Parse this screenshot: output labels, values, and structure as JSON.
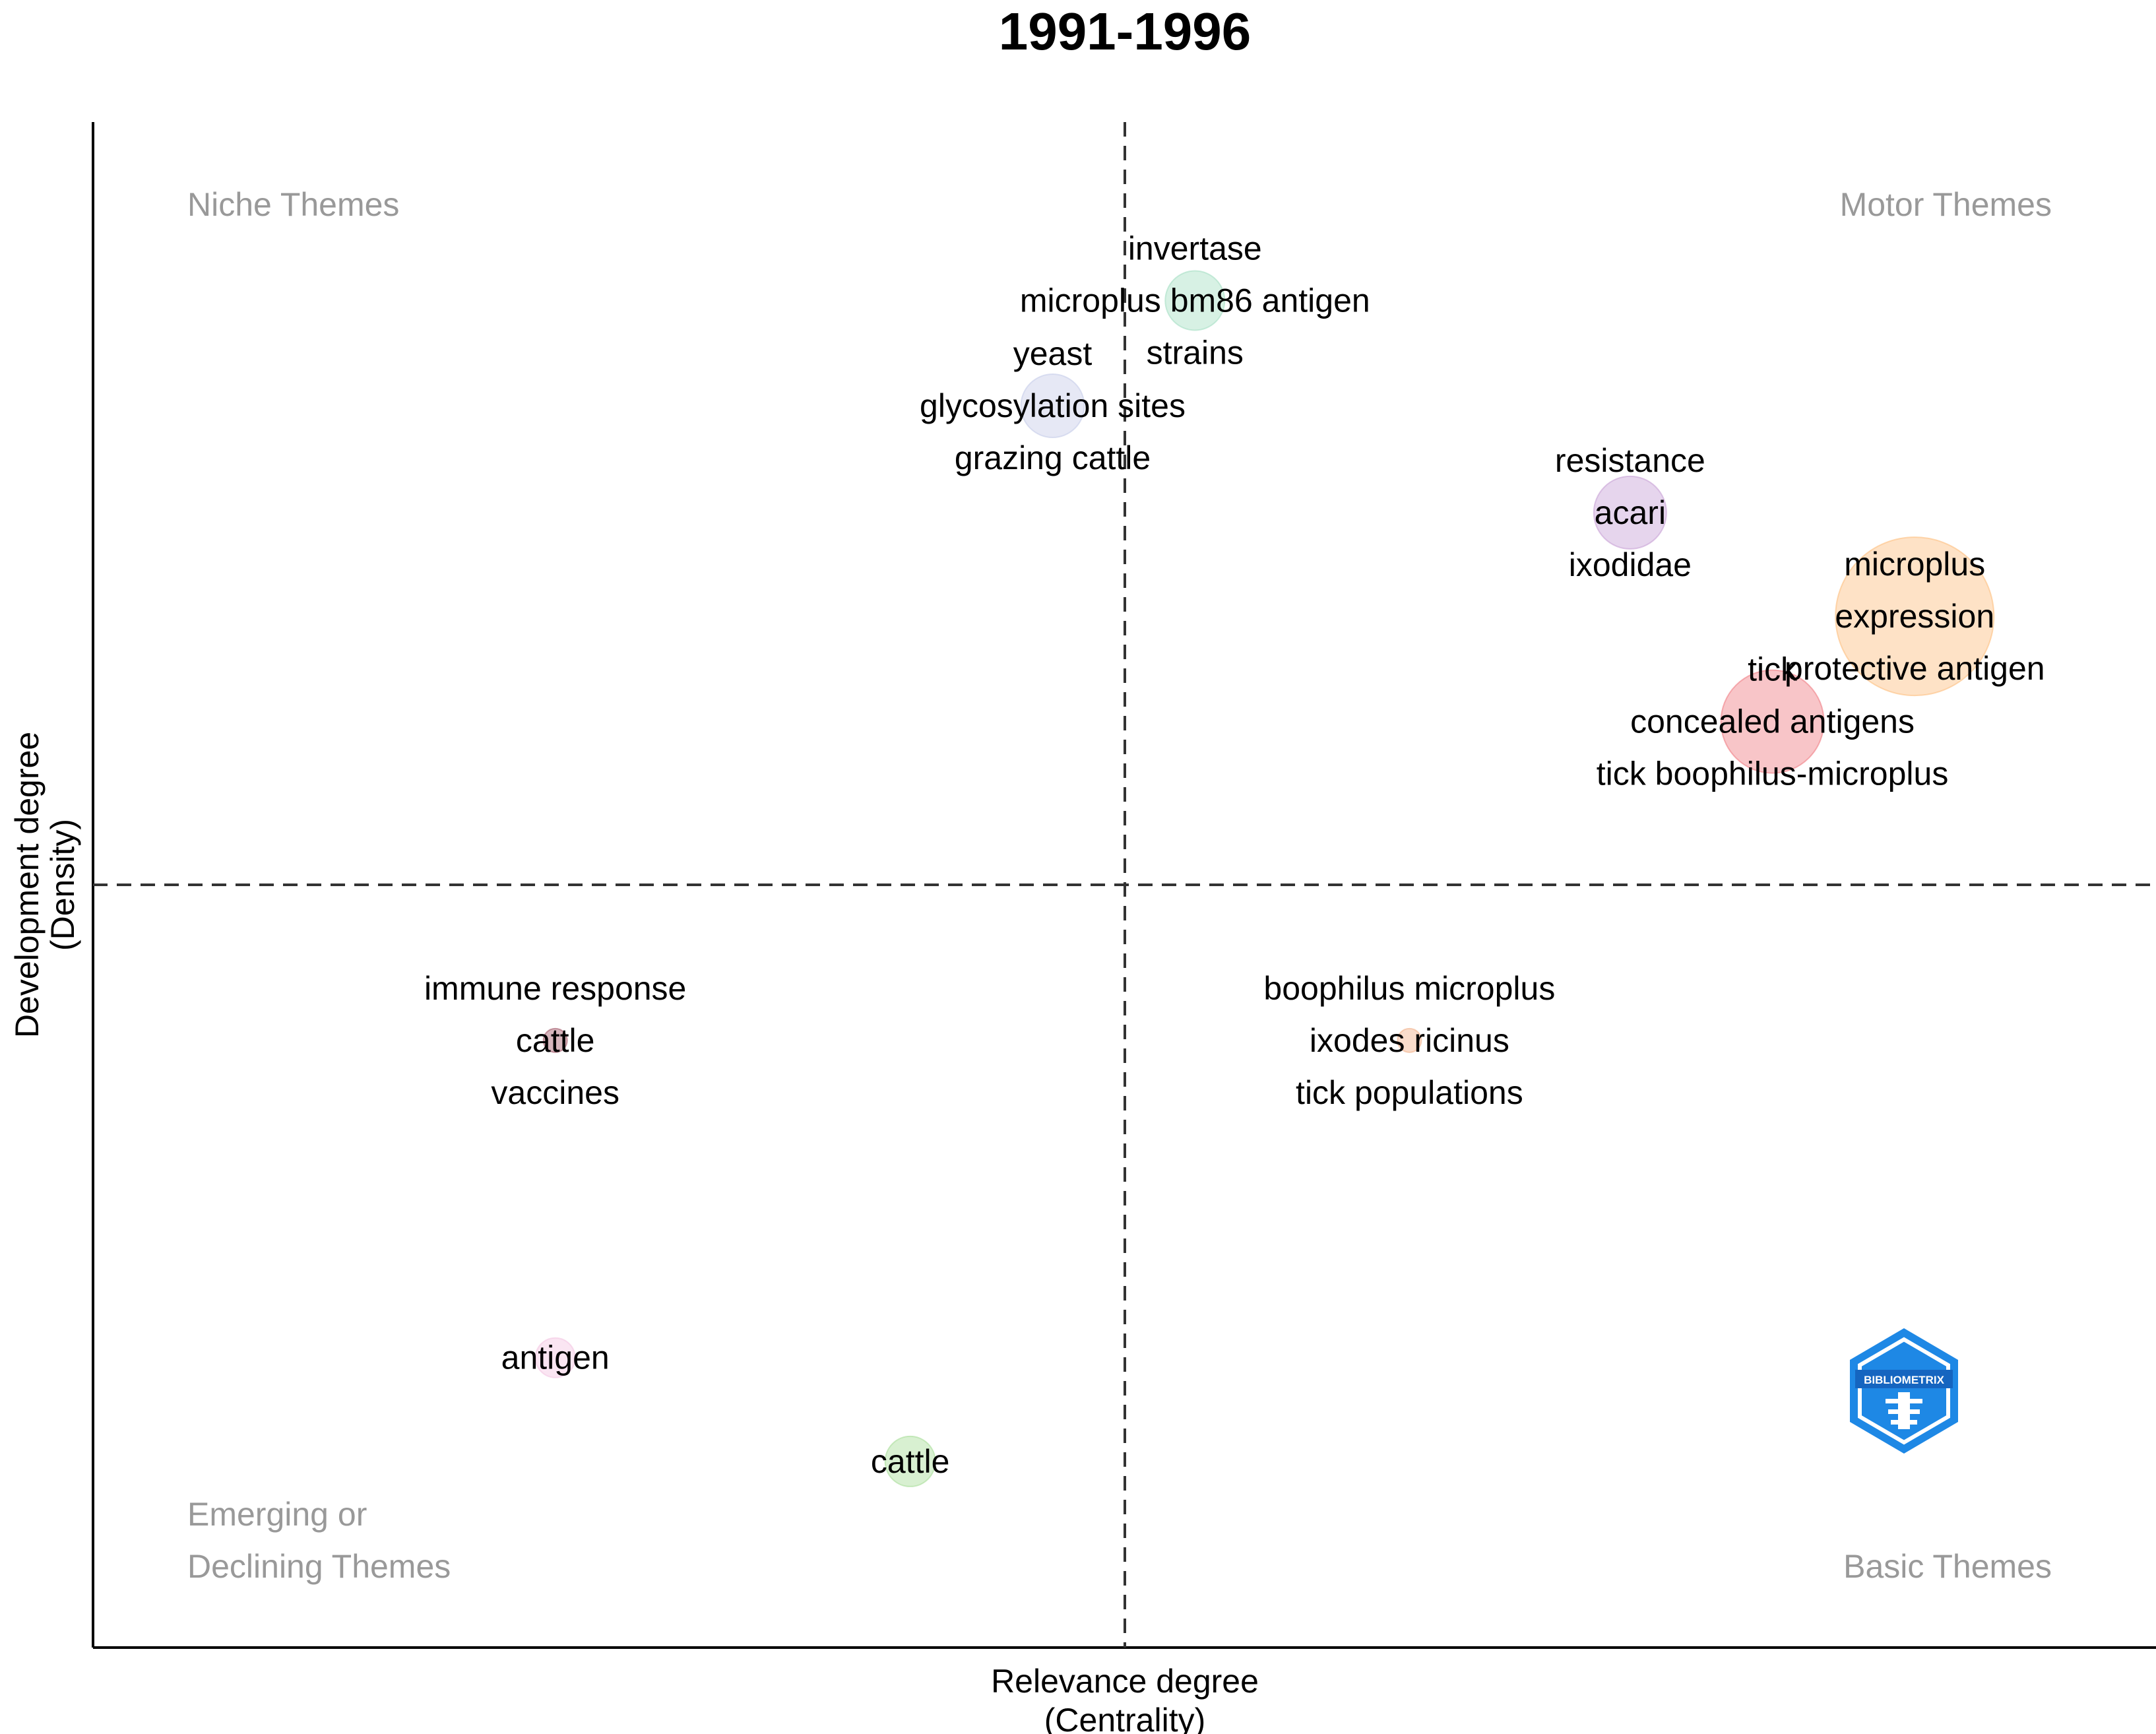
{
  "chart_data": {
    "type": "scatter",
    "title": "1991-1996",
    "xlabel": [
      "Relevance degree",
      "(Centrality)"
    ],
    "ylabel": [
      "Development degree",
      "(Density)"
    ],
    "xlim": [
      0,
      100
    ],
    "ylim": [
      0,
      100
    ],
    "center": {
      "x": 50,
      "y": 50
    },
    "quadrant_labels": {
      "top_left": [
        "Niche Themes"
      ],
      "top_right": [
        "Motor Themes"
      ],
      "bottom_left": [
        "Emerging or",
        "Declining Themes"
      ],
      "bottom_right": [
        "Basic Themes"
      ]
    },
    "clusters": [
      {
        "x": 53.4,
        "y": 88.3,
        "size": 45,
        "color": "#a6dfc4",
        "labels": [
          "invertase",
          "microplus bm86 antigen",
          "strains"
        ]
      },
      {
        "x": 46.5,
        "y": 81.4,
        "size": 48,
        "color": "#c7cde9",
        "labels": [
          "yeast",
          "glycosylation sites",
          "grazing cattle"
        ]
      },
      {
        "x": 74.5,
        "y": 74.4,
        "size": 55,
        "color": "#c8a2d6",
        "labels": [
          "resistance",
          "acari",
          "ixodidae"
        ]
      },
      {
        "x": 88.3,
        "y": 67.6,
        "size": 120,
        "color": "#fdbf80",
        "labels": [
          "microplus",
          "expression",
          "protective antigen"
        ]
      },
      {
        "x": 81.4,
        "y": 60.7,
        "size": 78,
        "color": "#f07f86",
        "labels": [
          "tick",
          "concealed antigens",
          "tick boophilus-microplus"
        ]
      },
      {
        "x": 22.4,
        "y": 39.8,
        "size": 18,
        "color": "#a45a6a",
        "labels": [
          "immune response",
          "cattle",
          "vaccines"
        ]
      },
      {
        "x": 63.8,
        "y": 39.8,
        "size": 18,
        "color": "#f2b28c",
        "labels": [
          "boophilus microplus",
          "ixodes ricinus",
          "tick populations"
        ]
      },
      {
        "x": 22.4,
        "y": 19.0,
        "size": 30,
        "color": "#f3c6e2",
        "labels": [
          "antigen"
        ]
      },
      {
        "x": 39.6,
        "y": 12.2,
        "size": 38,
        "color": "#a9dd99",
        "labels": [
          "cattle"
        ]
      }
    ],
    "logo_text": "BIBLIOMETRIX"
  }
}
